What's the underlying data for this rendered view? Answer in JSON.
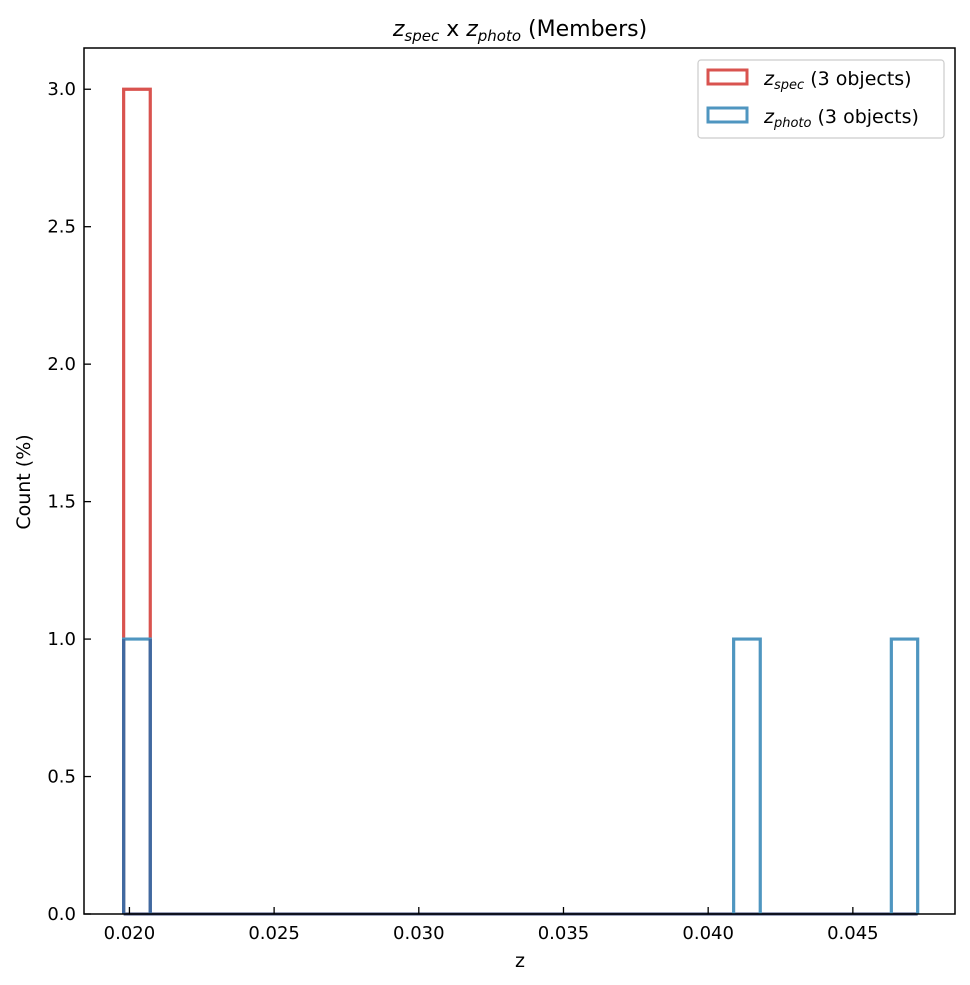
{
  "chart_data": {
    "type": "histogram",
    "title": {
      "main": "z",
      "sub1": "spec",
      "mid": " x ",
      "main2": "z",
      "sub2": "photo",
      "tail": " (Members)"
    },
    "xlabel": "z",
    "ylabel": "Count (%)",
    "xlim": [
      0.01843,
      0.04853
    ],
    "ylim": [
      0,
      3.15
    ],
    "xticks": [
      0.02,
      0.025,
      0.03,
      0.035,
      0.04,
      0.045
    ],
    "xtick_labels": [
      "0.020",
      "0.025",
      "0.030",
      "0.035",
      "0.040",
      "0.045"
    ],
    "yticks": [
      0,
      0.5,
      1,
      1.5,
      2,
      2.5,
      3
    ],
    "ytick_labels": [
      "0.0",
      "0.5",
      "1.0",
      "1.5",
      "2.0",
      "2.5",
      "3.0"
    ],
    "tick_direction": "in",
    "grid": false,
    "legend_position": "top-right",
    "series": [
      {
        "name_main": "z",
        "name_sub": "spec",
        "name_tail": " (3 objects)",
        "color": "#d9534f",
        "bars": [
          {
            "x0": 0.0198,
            "x1": 0.02072,
            "count": 3
          }
        ]
      },
      {
        "name_main": "z",
        "name_sub": "photo",
        "name_tail": " (3 objects)",
        "color": "#4f96c0",
        "bars": [
          {
            "x0": 0.0198,
            "x1": 0.02072,
            "count": 1
          },
          {
            "x0": 0.04088,
            "x1": 0.0418,
            "count": 1
          },
          {
            "x0": 0.04633,
            "x1": 0.04724,
            "count": 1
          }
        ]
      }
    ],
    "baseline": {
      "x0": 0.0198,
      "x1": 0.04724,
      "color": "#3c4a7a"
    },
    "overlap_color": "#4169a0"
  }
}
